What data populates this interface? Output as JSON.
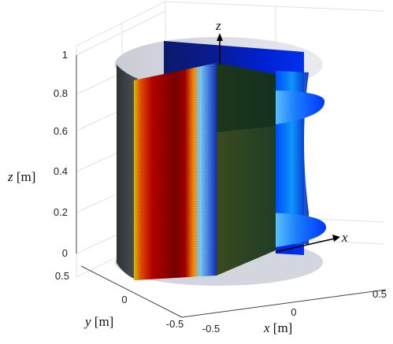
{
  "chart_data": {
    "type": "surface3d",
    "title": "",
    "xlabel": {
      "var": "x",
      "unit": "[m]"
    },
    "ylabel": {
      "var": "y",
      "unit": "[m]"
    },
    "zlabel": {
      "var": "z",
      "unit": "[m]"
    },
    "xticks": [
      "-0.5",
      "0",
      "0.5"
    ],
    "yticks": [
      "0.5",
      "0",
      "-0.5"
    ],
    "zticks": [
      "0",
      "0.2",
      "0.4",
      "0.6",
      "0.8",
      "1"
    ],
    "xlim": [
      -0.5,
      0.5
    ],
    "ylim": [
      -0.5,
      0.5
    ],
    "zlim": [
      0,
      1
    ],
    "grid": true,
    "colormap": "jet",
    "cylinder": {
      "radius": 0.5,
      "height": 1
    },
    "horizontal_slices_z": [
      0.2,
      0.6
    ],
    "vertical_slices": [
      "x = 0",
      "y = 0"
    ],
    "arrow_labels": {
      "x": "x",
      "z": "z"
    }
  },
  "colors": {
    "hot": "#b40000",
    "cold": "#0010a0",
    "cylinder_light": "#dde0e8",
    "cylinder_dark": "#3a3d3f"
  }
}
